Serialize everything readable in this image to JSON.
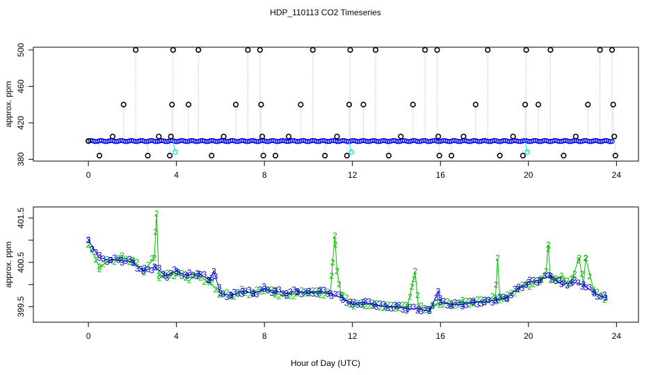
{
  "title": "HDP_110113  CO2 Timeseries",
  "colors": {
    "top_points": "#0000ff",
    "top_spikes": "#000000",
    "top_highlight": "#00e5e5",
    "top_connector": "#b0b0b0",
    "series_2": "#00bb00",
    "series_3": "#0000cc"
  },
  "chart_data": [
    {
      "type": "scatter",
      "xlabel": "",
      "ylabel": "approx. ppm",
      "xlim": [
        -2.5,
        25
      ],
      "ylim": [
        378,
        503
      ],
      "xticks": [
        0,
        4,
        8,
        12,
        16,
        20,
        24
      ],
      "yticks": [
        380,
        420,
        460,
        500
      ],
      "grid": false,
      "baseline": 400,
      "series": [
        {
          "name": "",
          "x": [
            0.0,
            1.1,
            1.6,
            2.15,
            3.2,
            3.75,
            3.8,
            3.85,
            4.55,
            5.0,
            6.15,
            6.7,
            7.25,
            7.8,
            7.85,
            7.9,
            9.1,
            9.65,
            10.2,
            11.3,
            11.85,
            11.9,
            12.5,
            13.05,
            14.2,
            14.75,
            15.3,
            15.85,
            15.9,
            17.05,
            17.6,
            18.15,
            19.3,
            19.85,
            19.9,
            20.45,
            21.0,
            22.15,
            22.7,
            23.25,
            23.8,
            23.85,
            23.9,
            0.5,
            2.7,
            3.7,
            5.6,
            7.95,
            8.5,
            10.75,
            11.75,
            13.65,
            15.95,
            16.5,
            18.7,
            19.75,
            21.6,
            23.95
          ],
          "y": [
            400,
            405,
            440,
            500,
            405,
            405,
            440,
            500,
            440,
            500,
            405,
            440,
            500,
            500,
            440,
            405,
            405,
            440,
            500,
            405,
            440,
            500,
            440,
            500,
            405,
            440,
            500,
            500,
            405,
            405,
            440,
            500,
            405,
            440,
            500,
            440,
            500,
            405,
            440,
            500,
            500,
            440,
            405,
            384,
            384,
            384,
            384,
            384,
            384,
            384,
            384,
            384,
            384,
            384,
            384,
            384,
            384,
            384
          ]
        },
        {
          "name": "",
          "x": [
            3.95,
            11.95,
            19.95
          ],
          "y": [
            388,
            388,
            388
          ]
        }
      ]
    },
    {
      "type": "line",
      "xlabel": "Hour of Day (UTC)",
      "ylabel": "approx. ppm",
      "xlim": [
        -2.5,
        25
      ],
      "ylim": [
        399.15,
        401.75
      ],
      "xticks": [
        0,
        4,
        8,
        12,
        16,
        20,
        24
      ],
      "yticks": [
        399.5,
        400.0,
        400.5,
        401.0,
        401.5
      ],
      "ytick_labels": [
        "399.5",
        "",
        "400.5",
        "",
        "401.5"
      ],
      "grid": false,
      "series": [
        {
          "name": "",
          "marker": "2",
          "x": [
            0,
            0.5,
            1,
            1.5,
            2,
            2.5,
            3.0,
            3.1,
            3.2,
            3.5,
            4,
            4.5,
            5,
            5.5,
            6,
            6.5,
            7,
            7.5,
            8,
            8.5,
            9,
            9.5,
            10,
            10.5,
            11,
            11.1,
            11.2,
            11.3,
            11.5,
            12,
            12.5,
            13,
            13.5,
            14,
            14.5,
            14.7,
            14.85,
            15,
            15.5,
            16,
            16.5,
            17,
            17.5,
            18,
            18.5,
            18.6,
            18.7,
            19,
            19.5,
            20,
            20.5,
            20.8,
            20.9,
            21.0,
            21.2,
            21.5,
            21.8,
            22,
            22.3,
            22.5,
            22.6,
            23,
            23.5
          ],
          "y": [
            400.9,
            400.4,
            400.55,
            400.6,
            400.55,
            400.3,
            400.6,
            401.6,
            400.2,
            400.2,
            400.25,
            400.15,
            400.2,
            400.05,
            399.8,
            399.75,
            399.85,
            399.8,
            399.9,
            399.8,
            399.75,
            399.8,
            399.85,
            399.8,
            399.8,
            400.5,
            401.1,
            400.3,
            399.75,
            399.55,
            399.55,
            399.55,
            399.5,
            399.5,
            399.5,
            399.95,
            400.3,
            399.5,
            399.45,
            399.6,
            399.55,
            399.6,
            399.6,
            399.65,
            399.7,
            400.6,
            399.7,
            399.7,
            399.9,
            400.0,
            400.05,
            400.3,
            400.9,
            400.1,
            400.1,
            400.2,
            400.0,
            400.15,
            400.6,
            400.0,
            400.6,
            399.8,
            399.7
          ]
        },
        {
          "name": "",
          "marker": "3",
          "x": [
            0,
            0.5,
            1,
            1.5,
            2,
            2.5,
            3,
            3.5,
            4,
            4.5,
            5,
            5.5,
            5.7,
            6,
            6.5,
            7,
            7.5,
            8,
            8.5,
            9,
            9.5,
            10,
            10.5,
            11,
            11.5,
            12,
            12.5,
            13,
            13.5,
            14,
            14.5,
            15,
            15.5,
            15.9,
            16,
            16.5,
            17,
            17.5,
            18,
            18.5,
            19,
            19.5,
            20,
            20.5,
            21,
            21.5,
            22,
            22.5,
            23,
            23.5
          ],
          "y": [
            401.0,
            400.6,
            400.55,
            400.55,
            400.5,
            400.3,
            400.4,
            400.2,
            400.3,
            400.2,
            400.25,
            400.1,
            400.3,
            399.8,
            399.75,
            399.85,
            399.8,
            399.9,
            399.85,
            399.8,
            399.85,
            399.8,
            399.85,
            399.8,
            399.7,
            399.55,
            399.6,
            399.55,
            399.5,
            399.5,
            399.45,
            399.45,
            399.4,
            399.85,
            399.6,
            399.55,
            399.55,
            399.6,
            399.6,
            399.65,
            399.7,
            399.9,
            400.05,
            400.1,
            400.2,
            400.0,
            400.05,
            400.0,
            399.8,
            399.7
          ]
        }
      ]
    }
  ]
}
